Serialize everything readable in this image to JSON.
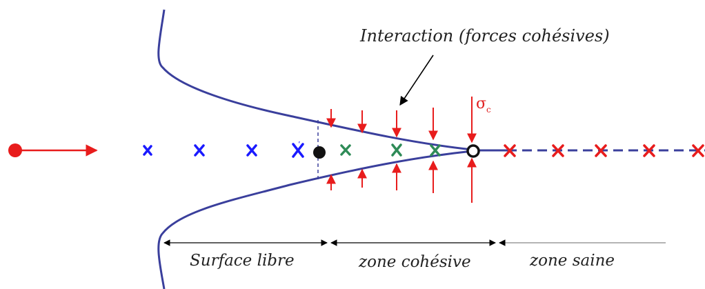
{
  "labels": {
    "interaction": "Interaction (forces cohésives)",
    "sigma": "σ",
    "sigma_sub": "c",
    "surface_libre": "Surface libre",
    "zone_cohesive": "zone cohésive",
    "zone_saine": "zone saine"
  },
  "colors": {
    "crack_outline": "#3a3f9c",
    "blue_nodes": "#1a1aff",
    "green_nodes": "#2e8b57",
    "red": "#e81c1c",
    "dimension_line": "#000000",
    "background": "#ffffff"
  },
  "icons": {
    "load_arrow": "arrow-right-icon",
    "crack_tip": "open-circle-icon",
    "cohesive_start": "filled-circle-icon",
    "node": "x-mark-icon"
  }
}
